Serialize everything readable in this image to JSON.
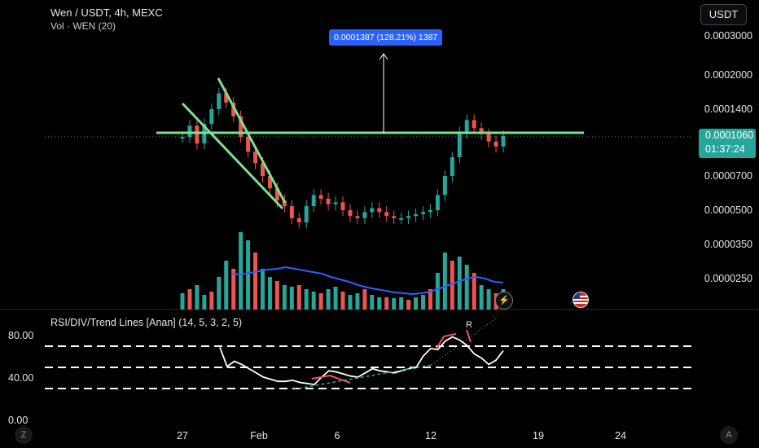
{
  "header": {
    "title": "Wen / USDT, 4h, MEXC",
    "volume_label": "Vol · WEN (20)",
    "currency_button": "USDT"
  },
  "price_axis": {
    "ticks": [
      "0.0003000",
      "0.0002000",
      "0.0001400",
      "0.0000700",
      "0.0000500",
      "0.0000350",
      "0.0000250"
    ]
  },
  "current_price": {
    "value": "0.0001060",
    "countdown": "01:37:24",
    "color": "#26a69a"
  },
  "measure_label": "0.0001387 (128.21%) 1387",
  "rsi_panel": {
    "title": "RSI/DIV/Trend Lines [Anan] (14, 5, 3, 2, 5)",
    "ticks": [
      "80.00",
      "40.00",
      "0.00"
    ],
    "divergence_label": "R"
  },
  "time_axis": {
    "ticks": [
      "27",
      "Feb",
      "6",
      "12",
      "19",
      "24"
    ]
  },
  "corner_buttons": {
    "left": "Z",
    "right": "A"
  },
  "icons": {
    "flash": "lightning-icon",
    "flag": "us-flag-icon"
  },
  "colors": {
    "up": "#26a69a",
    "down": "#ef5350",
    "trendline": "#7ee08f",
    "volume_ma": "#2962ff",
    "background": "#000000"
  },
  "chart_data": {
    "type": "candlestick",
    "price_path": [
      0.000105,
      0.000118,
      9.8e-05,
      0.00012,
      0.00014,
      0.000165,
      0.00015,
      0.00013,
      0.000105,
      9e-05,
      8e-05,
      7e-05,
      6.2e-05,
      5.5e-05,
      5.2e-05,
      4.6e-05,
      4.4e-05,
      5.2e-05,
      5.8e-05,
      5.6e-05,
      5.3e-05,
      5.4e-05,
      5e-05,
      4.7e-05,
      4.6e-05,
      4.9e-05,
      5.1e-05,
      4.9e-05,
      4.7e-05,
      4.6e-05,
      4.6e-05,
      4.7e-05,
      4.8e-05,
      4.9e-05,
      5e-05,
      5.8e-05,
      7e-05,
      8.5e-05,
      0.00011,
      0.000125,
      0.000115,
      0.000108,
      0.0001,
      9.5e-05,
      0.000106
    ],
    "volume": [
      20,
      25,
      30,
      18,
      22,
      40,
      60,
      50,
      95,
      85,
      70,
      50,
      40,
      35,
      30,
      28,
      30,
      25,
      22,
      20,
      25,
      28,
      22,
      18,
      20,
      25,
      18,
      15,
      15,
      14,
      15,
      12,
      15,
      18,
      25,
      45,
      70,
      60,
      65,
      55,
      45,
      30,
      25,
      20,
      25
    ],
    "volume_ma": [
      44,
      43,
      45,
      47,
      49,
      50,
      52,
      50,
      48,
      46,
      44,
      40,
      37,
      34,
      30,
      27,
      25,
      23,
      21,
      20,
      19,
      20,
      22,
      26,
      30,
      34,
      38,
      40,
      38,
      34,
      33
    ],
    "rsi": [
      68,
      50,
      55,
      52,
      48,
      44,
      40,
      38,
      36,
      36,
      37,
      35,
      34,
      33,
      40,
      46,
      45,
      43,
      41,
      40,
      44,
      48,
      46,
      45,
      44,
      46,
      48,
      49,
      60,
      67,
      66,
      74,
      78,
      75,
      70,
      62,
      58,
      52,
      56,
      65
    ],
    "rsi_levels": [
      70,
      50,
      30
    ]
  }
}
